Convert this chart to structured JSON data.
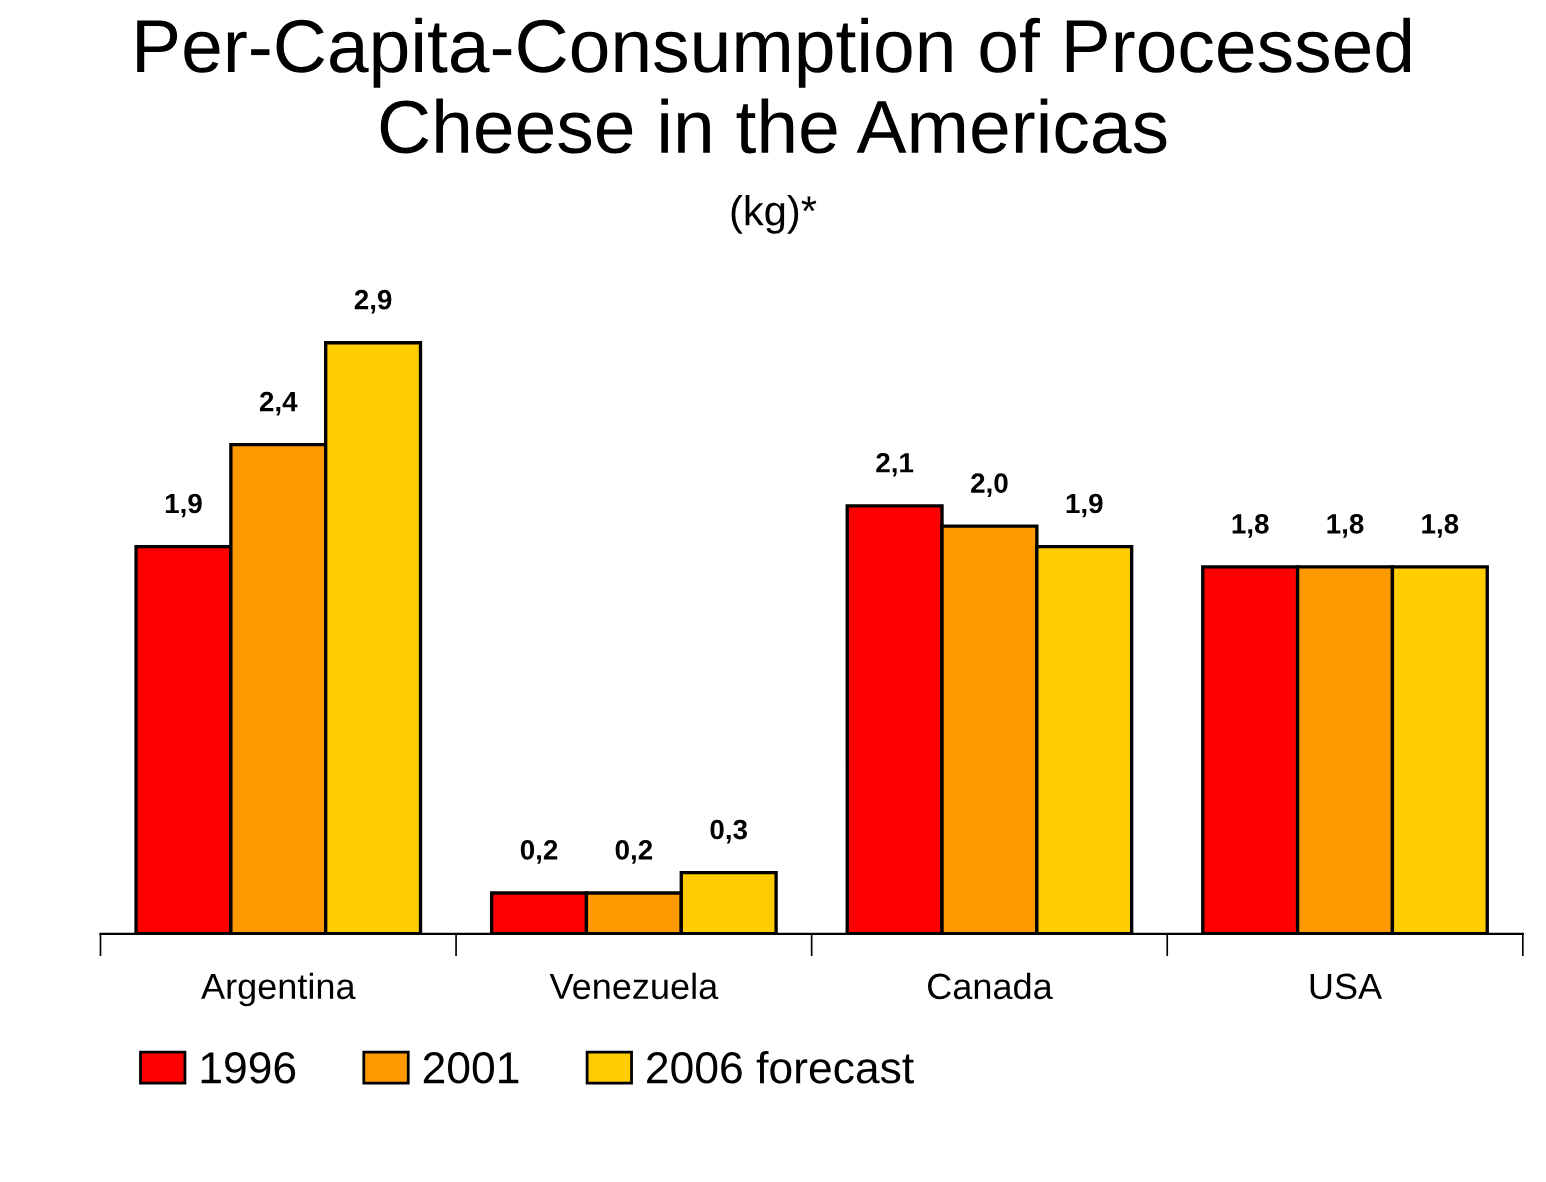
{
  "chart_data": {
    "type": "bar",
    "title": "Per-Capita-Consumption of Processed Cheese in the Americas",
    "subtitle": "(kg)*",
    "categories": [
      "Argentina",
      "Venezuela",
      "Canada",
      "USA"
    ],
    "series": [
      {
        "name": "1996",
        "color": "#ff0000",
        "values": [
          1.9,
          0.2,
          2.1,
          1.8
        ],
        "value_labels": [
          "1,9",
          "0,2",
          "2,1",
          "1,8"
        ]
      },
      {
        "name": "2001",
        "color": "#ff9900",
        "values": [
          2.4,
          0.2,
          2.0,
          1.8
        ],
        "value_labels": [
          "2,4",
          "0,2",
          "2,0",
          "1,8"
        ]
      },
      {
        "name": "2006 forecast",
        "color": "#ffcc00",
        "values": [
          2.9,
          0.3,
          1.9,
          1.8
        ],
        "value_labels": [
          "2,9",
          "0,3",
          "1,9",
          "1,8"
        ]
      }
    ],
    "legend": "bottom",
    "grid": false
  }
}
